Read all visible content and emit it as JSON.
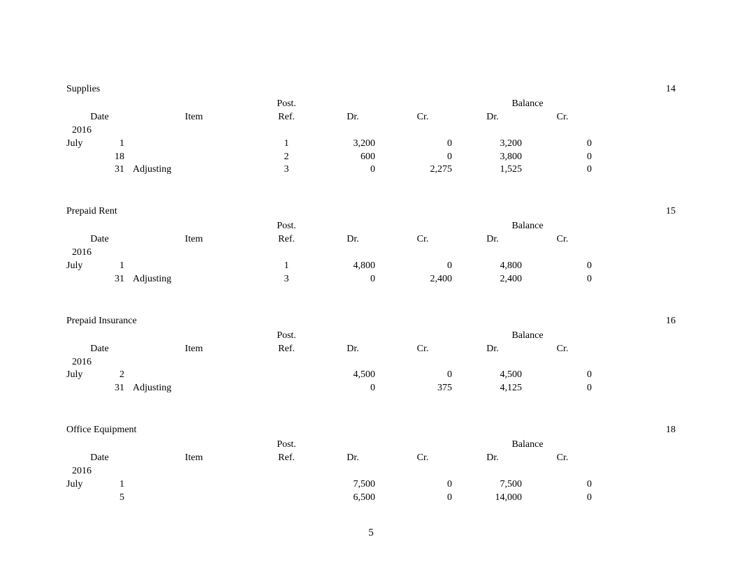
{
  "page_number": "5",
  "headers": {
    "post": "Post.",
    "balance": "Balance",
    "date": "Date",
    "item": "Item",
    "ref": "Ref.",
    "dr": "Dr.",
    "cr": "Cr.",
    "bal_dr": "Dr.",
    "bal_cr": "Cr."
  },
  "ledgers": [
    {
      "name": "Supplies",
      "number": "14",
      "year": "2016",
      "rows": [
        {
          "month": "July",
          "day": "1",
          "item": "",
          "ref": "1",
          "dr": "3,200",
          "cr": "0",
          "bal_dr": "3,200",
          "bal_cr": "0"
        },
        {
          "month": "",
          "day": "18",
          "item": "",
          "ref": "2",
          "dr": "600",
          "cr": "0",
          "bal_dr": "3,800",
          "bal_cr": "0"
        },
        {
          "month": "",
          "day": "31",
          "item": "Adjusting",
          "ref": "3",
          "dr": "0",
          "cr": "2,275",
          "bal_dr": "1,525",
          "bal_cr": "0"
        }
      ]
    },
    {
      "name": "Prepaid Rent",
      "number": "15",
      "year": "2016",
      "rows": [
        {
          "month": "July",
          "day": "1",
          "item": "",
          "ref": "1",
          "dr": "4,800",
          "cr": "0",
          "bal_dr": "4,800",
          "bal_cr": "0"
        },
        {
          "month": "",
          "day": "31",
          "item": "Adjusting",
          "ref": "3",
          "dr": "0",
          "cr": "2,400",
          "bal_dr": "2,400",
          "bal_cr": "0"
        }
      ]
    },
    {
      "name": "Prepaid Insurance",
      "number": "16",
      "year": "2016",
      "rows": [
        {
          "month": "July",
          "day": "2",
          "item": "",
          "ref": "",
          "dr": "4,500",
          "cr": "0",
          "bal_dr": "4,500",
          "bal_cr": "0"
        },
        {
          "month": "",
          "day": "31",
          "item": "Adjusting",
          "ref": "",
          "dr": "0",
          "cr": "375",
          "bal_dr": "4,125",
          "bal_cr": "0"
        }
      ]
    },
    {
      "name": "Office Equipment",
      "number": "18",
      "year": "2016",
      "rows": [
        {
          "month": "July",
          "day": "1",
          "item": "",
          "ref": "",
          "dr": "7,500",
          "cr": "0",
          "bal_dr": "7,500",
          "bal_cr": "0"
        },
        {
          "month": "",
          "day": "5",
          "item": "",
          "ref": "",
          "dr": "6,500",
          "cr": "0",
          "bal_dr": "14,000",
          "bal_cr": "0"
        }
      ]
    }
  ]
}
